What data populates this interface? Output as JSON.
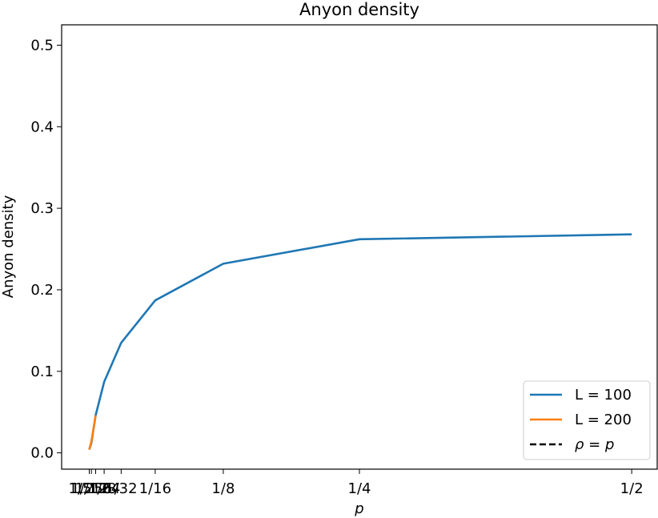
{
  "chart_data": {
    "type": "line",
    "title": "Anyon density",
    "xlabel": "p",
    "ylabel": "Anyon density",
    "xscale": "linear",
    "xlim": [
      -0.0234,
      0.5234
    ],
    "ylim": [
      -0.02,
      0.525
    ],
    "yticks": [
      0.0,
      0.1,
      0.2,
      0.3,
      0.4,
      0.5
    ],
    "ytick_labels": [
      "0.0",
      "0.1",
      "0.2",
      "0.3",
      "0.4",
      "0.5"
    ],
    "xticks": [
      0.001953125,
      0.00390625,
      0.0078125,
      0.015625,
      0.03125,
      0.0625,
      0.125,
      0.25,
      0.5
    ],
    "xtick_labels": [
      "1/512",
      "1/256",
      "1/128",
      "1/64",
      "1/32",
      "1/16",
      "1/8",
      "1/4",
      "1/2"
    ],
    "series": [
      {
        "name": "L = 100",
        "color": "#1f77b4",
        "style": "solid",
        "x": [
          0.001953125,
          0.00390625,
          0.0078125,
          0.015625,
          0.03125,
          0.0625,
          0.125,
          0.25,
          0.5
        ],
        "y": [
          0.004,
          0.012,
          0.046,
          0.087,
          0.135,
          0.187,
          0.232,
          0.262,
          0.268
        ]
      },
      {
        "name": "L = 200",
        "color": "#ff7f0e",
        "style": "solid",
        "x": [
          0.001953125,
          0.00390625,
          0.0078125
        ],
        "y": [
          0.004,
          0.014,
          0.046
        ]
      },
      {
        "name": "ρ = p",
        "color": "#000000",
        "style": "dashed",
        "x": [],
        "y": []
      }
    ],
    "legend": {
      "placement": "lower-right",
      "entries": [
        "L = 100",
        "L = 200",
        "ρ = p"
      ]
    },
    "grid": false
  }
}
